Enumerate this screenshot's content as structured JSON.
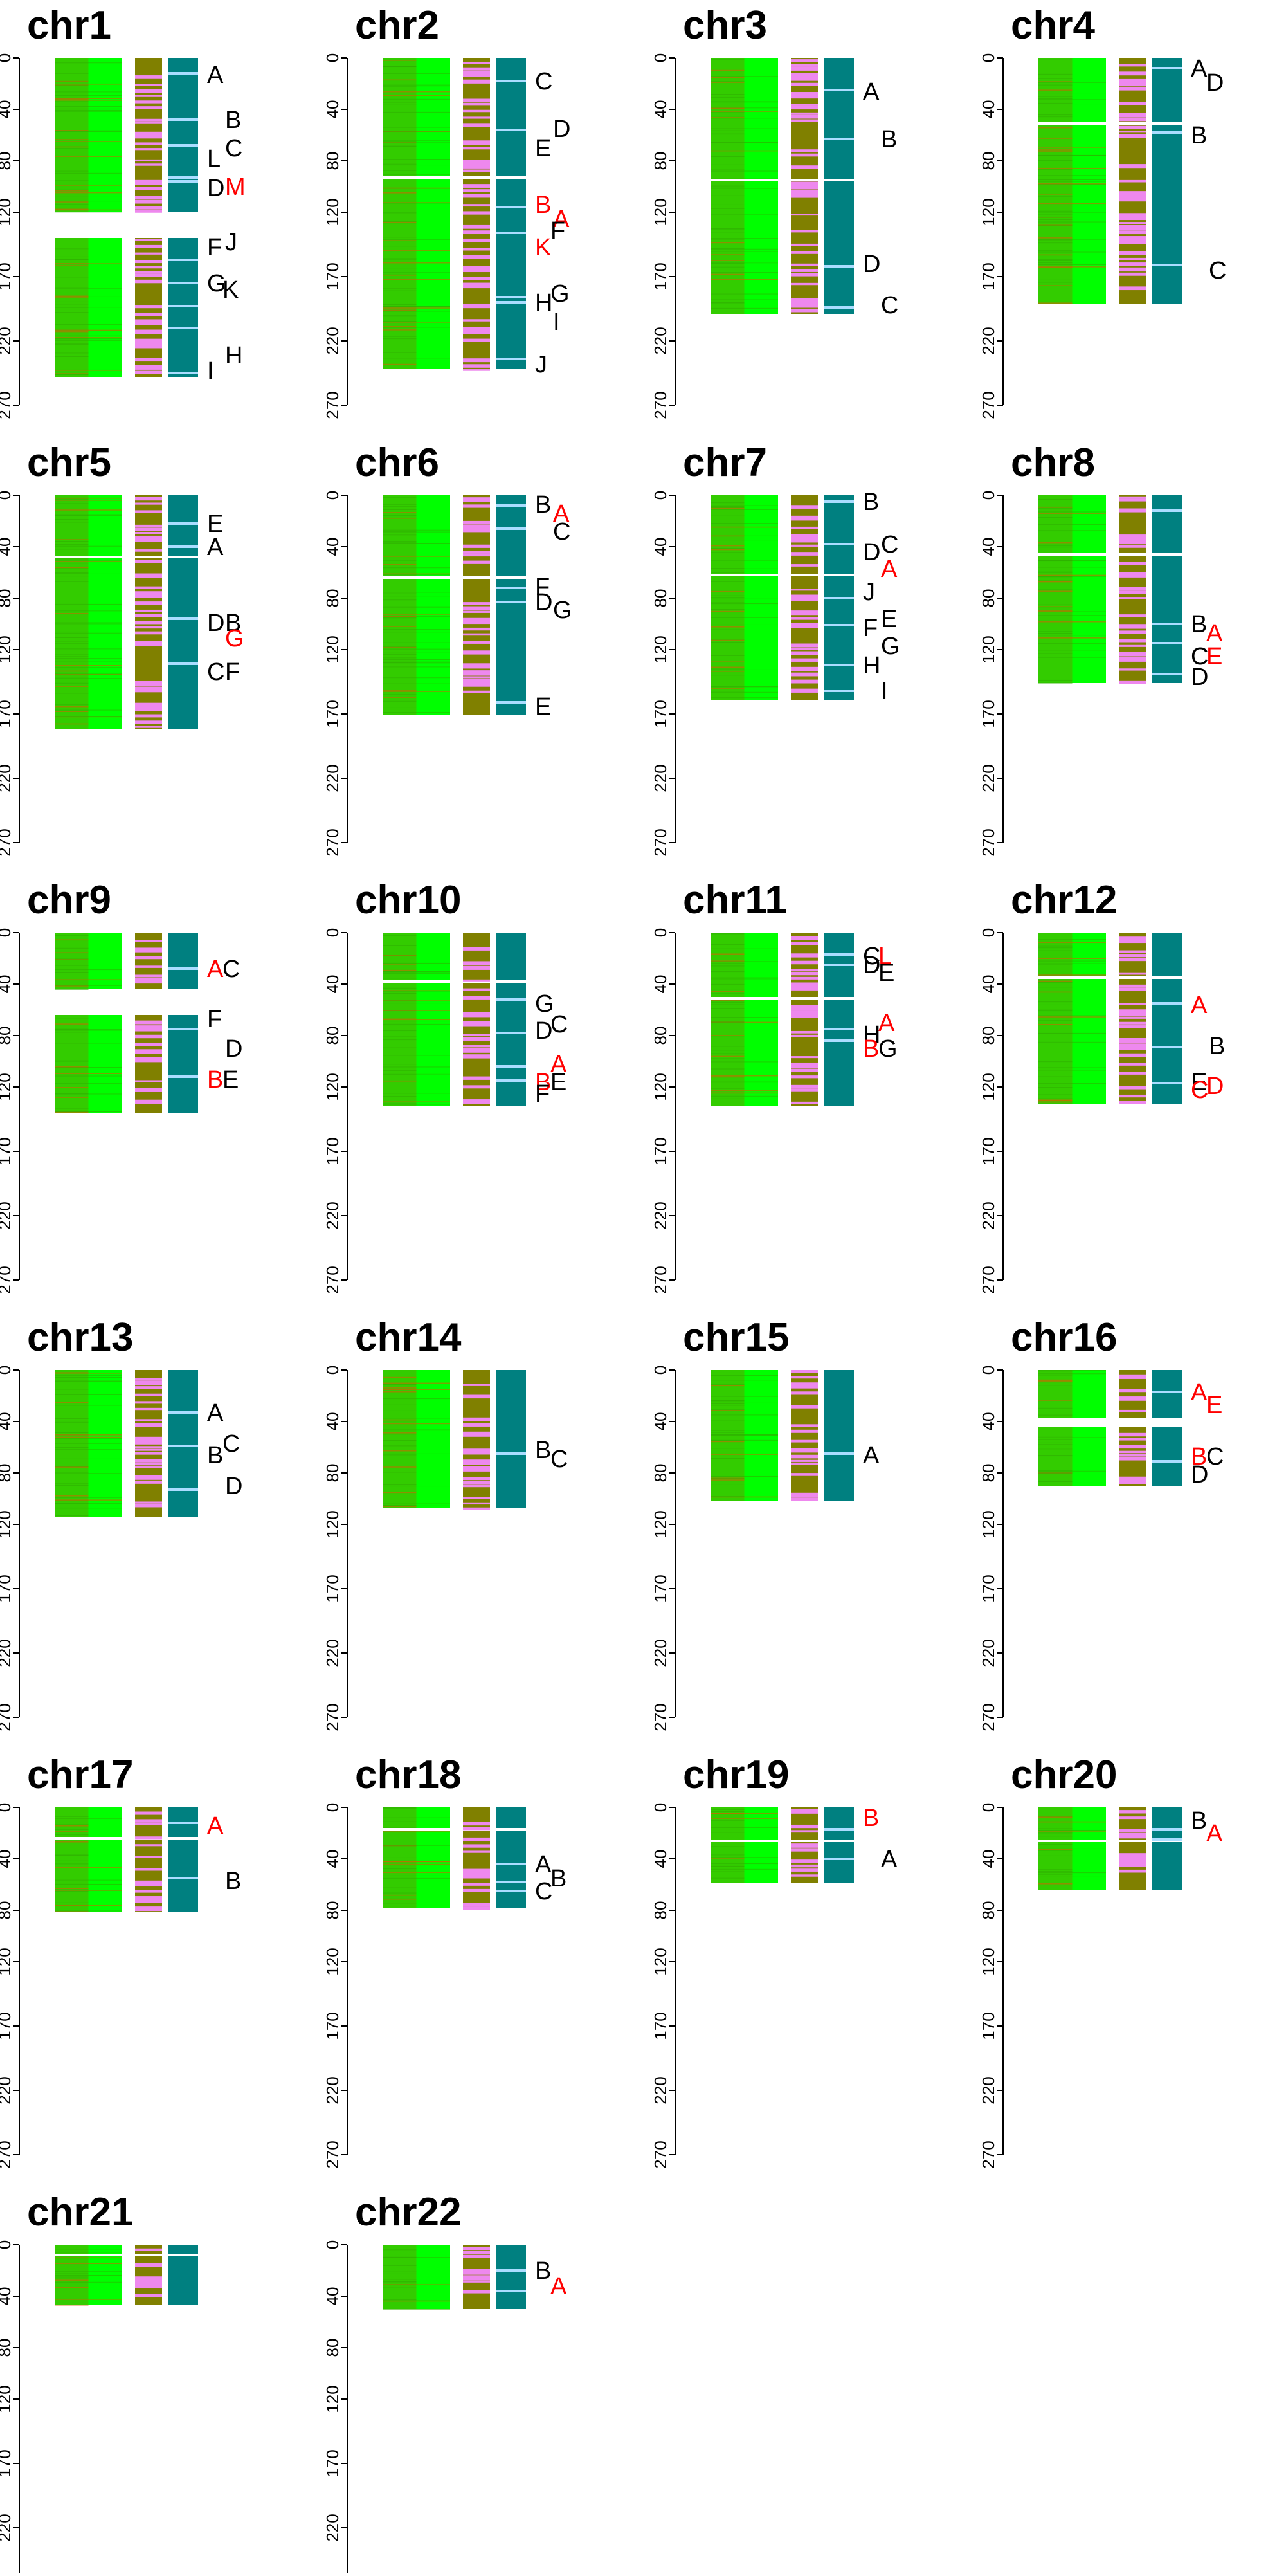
{
  "chart_data": {
    "type": "heatmap",
    "y_axis": {
      "ticks": [
        0,
        40,
        80,
        120,
        170,
        220,
        270
      ],
      "ylim": [
        0,
        270
      ],
      "reversed": true
    },
    "grid": false,
    "colors": {
      "track1_base": "#00ff00",
      "track1_shade": "#33cc00",
      "track1_stripe": "#cc6600",
      "track2_base": "#808000",
      "track2_stripe": "#ee88ee",
      "track3_base": "#008080",
      "track3_stripe": "#aaddff",
      "label_black": "#000000",
      "label_red": "#ff0000"
    },
    "panels": [
      {
        "title": "chr1",
        "start": 0,
        "end": 248,
        "gaps": [
          120,
          140
        ],
        "marks": [
          12,
          48,
          68,
          93,
          96,
          157,
          175,
          193,
          210,
          245
        ],
        "labels": [
          {
            "text": "A",
            "y": 13,
            "dx": 0,
            "color": "black"
          },
          {
            "text": "B",
            "y": 48,
            "dx": 28,
            "color": "black"
          },
          {
            "text": "C",
            "y": 70,
            "dx": 28,
            "color": "black"
          },
          {
            "text": "L",
            "y": 78,
            "dx": 0,
            "color": "black"
          },
          {
            "text": "D",
            "y": 101,
            "dx": 0,
            "color": "black"
          },
          {
            "text": "M",
            "y": 100,
            "dx": 28,
            "color": "red"
          },
          {
            "text": "J",
            "y": 143,
            "dx": 28,
            "color": "black"
          },
          {
            "text": "F",
            "y": 147,
            "dx": 0,
            "color": "black"
          },
          {
            "text": "G",
            "y": 175,
            "dx": 0,
            "color": "black"
          },
          {
            "text": "K",
            "y": 180,
            "dx": 24,
            "color": "black"
          },
          {
            "text": "H",
            "y": 231,
            "dx": 28,
            "color": "black"
          },
          {
            "text": "I",
            "y": 243,
            "dx": 0,
            "color": "black"
          }
        ]
      },
      {
        "title": "chr2",
        "start": 0,
        "end": 242,
        "gaps": [
          93
        ],
        "marks": [
          18,
          56,
          116,
          136,
          186,
          190,
          234
        ],
        "labels": [
          {
            "text": "C",
            "y": 18,
            "dx": 0,
            "color": "black"
          },
          {
            "text": "D",
            "y": 55,
            "dx": 28,
            "color": "black"
          },
          {
            "text": "E",
            "y": 70,
            "dx": 0,
            "color": "black"
          },
          {
            "text": "B",
            "y": 114,
            "dx": 0,
            "color": "red"
          },
          {
            "text": "A",
            "y": 125,
            "dx": 28,
            "color": "red"
          },
          {
            "text": "F",
            "y": 134,
            "dx": 24,
            "color": "black"
          },
          {
            "text": "K",
            "y": 147,
            "dx": 0,
            "color": "red"
          },
          {
            "text": "G",
            "y": 183,
            "dx": 24,
            "color": "black"
          },
          {
            "text": "H",
            "y": 190,
            "dx": 0,
            "color": "black"
          },
          {
            "text": "I",
            "y": 205,
            "dx": 28,
            "color": "black"
          },
          {
            "text": "J",
            "y": 238,
            "dx": 0,
            "color": "black"
          }
        ]
      },
      {
        "title": "chr3",
        "start": 0,
        "end": 199,
        "gaps": [
          95
        ],
        "marks": [
          25,
          63,
          162,
          194
        ],
        "labels": [
          {
            "text": "A",
            "y": 26,
            "dx": 0,
            "color": "black"
          },
          {
            "text": "B",
            "y": 63,
            "dx": 28,
            "color": "black"
          },
          {
            "text": "D",
            "y": 160,
            "dx": 0,
            "color": "black"
          },
          {
            "text": "C",
            "y": 192,
            "dx": 28,
            "color": "black"
          }
        ]
      },
      {
        "title": "chr4",
        "start": 0,
        "end": 191,
        "gaps": [
          51
        ],
        "marks": [
          8,
          58,
          161
        ],
        "labels": [
          {
            "text": "A",
            "y": 8,
            "dx": 0,
            "color": "black"
          },
          {
            "text": "D",
            "y": 19,
            "dx": 24,
            "color": "black"
          },
          {
            "text": "B",
            "y": 60,
            "dx": 0,
            "color": "black"
          },
          {
            "text": "C",
            "y": 165,
            "dx": 28,
            "color": "black"
          }
        ]
      },
      {
        "title": "chr5",
        "start": 0,
        "end": 182,
        "gaps": [
          48
        ],
        "marks": [
          22,
          40,
          96,
          131
        ],
        "labels": [
          {
            "text": "E",
            "y": 22,
            "dx": 0,
            "color": "black"
          },
          {
            "text": "A",
            "y": 40,
            "dx": 0,
            "color": "black"
          },
          {
            "text": "D",
            "y": 99,
            "dx": 0,
            "color": "black"
          },
          {
            "text": "B",
            "y": 99,
            "dx": 28,
            "color": "black"
          },
          {
            "text": "G",
            "y": 111,
            "dx": 28,
            "color": "red"
          },
          {
            "text": "C",
            "y": 137,
            "dx": 0,
            "color": "black"
          },
          {
            "text": "F",
            "y": 137,
            "dx": 28,
            "color": "black"
          }
        ]
      },
      {
        "title": "chr6",
        "start": 0,
        "end": 171,
        "gaps": [
          64
        ],
        "marks": [
          8,
          26,
          72,
          83,
          161
        ],
        "labels": [
          {
            "text": "B",
            "y": 7,
            "dx": 0,
            "color": "black"
          },
          {
            "text": "A",
            "y": 14,
            "dx": 28,
            "color": "red"
          },
          {
            "text": "C",
            "y": 28,
            "dx": 28,
            "color": "black"
          },
          {
            "text": "F",
            "y": 71,
            "dx": 0,
            "color": "black"
          },
          {
            "text": "D",
            "y": 83,
            "dx": 0,
            "color": "black"
          },
          {
            "text": "G",
            "y": 89,
            "dx": 28,
            "color": "black"
          },
          {
            "text": "E",
            "y": 164,
            "dx": 0,
            "color": "black"
          }
        ]
      },
      {
        "title": "chr7",
        "start": 0,
        "end": 159,
        "gaps": [
          62
        ],
        "marks": [
          5,
          38,
          80,
          101,
          132,
          152
        ],
        "labels": [
          {
            "text": "B",
            "y": 5,
            "dx": 0,
            "color": "black"
          },
          {
            "text": "C",
            "y": 38,
            "dx": 28,
            "color": "black"
          },
          {
            "text": "D",
            "y": 44,
            "dx": 0,
            "color": "black"
          },
          {
            "text": "A",
            "y": 57,
            "dx": 28,
            "color": "red"
          },
          {
            "text": "J",
            "y": 75,
            "dx": 0,
            "color": "black"
          },
          {
            "text": "E",
            "y": 96,
            "dx": 28,
            "color": "black"
          },
          {
            "text": "F",
            "y": 103,
            "dx": 0,
            "color": "black"
          },
          {
            "text": "G",
            "y": 117,
            "dx": 28,
            "color": "black"
          },
          {
            "text": "H",
            "y": 132,
            "dx": 0,
            "color": "black"
          },
          {
            "text": "I",
            "y": 152,
            "dx": 28,
            "color": "black"
          }
        ]
      },
      {
        "title": "chr8",
        "start": 0,
        "end": 146,
        "gaps": [
          46
        ],
        "marks": [
          12,
          100,
          115,
          139
        ],
        "labels": [
          {
            "text": "B",
            "y": 100,
            "dx": 0,
            "color": "black"
          },
          {
            "text": "A",
            "y": 107,
            "dx": 24,
            "color": "red"
          },
          {
            "text": "C",
            "y": 125,
            "dx": 0,
            "color": "black"
          },
          {
            "text": "E",
            "y": 125,
            "dx": 24,
            "color": "red"
          },
          {
            "text": "D",
            "y": 141,
            "dx": 0,
            "color": "black"
          }
        ]
      },
      {
        "title": "chr9",
        "start": 0,
        "end": 140,
        "gaps": [
          44,
          64
        ],
        "marks": [
          28,
          75,
          112
        ],
        "labels": [
          {
            "text": "A",
            "y": 28,
            "dx": 0,
            "color": "red"
          },
          {
            "text": "C",
            "y": 28,
            "dx": 24,
            "color": "black"
          },
          {
            "text": "F",
            "y": 67,
            "dx": 0,
            "color": "black"
          },
          {
            "text": "D",
            "y": 90,
            "dx": 28,
            "color": "black"
          },
          {
            "text": "B",
            "y": 114,
            "dx": 0,
            "color": "red"
          },
          {
            "text": "E",
            "y": 114,
            "dx": 24,
            "color": "black"
          }
        ]
      },
      {
        "title": "chr10",
        "start": 0,
        "end": 135,
        "gaps": [
          38
        ],
        "marks": [
          52,
          78,
          104,
          115
        ],
        "labels": [
          {
            "text": "G",
            "y": 55,
            "dx": 0,
            "color": "black"
          },
          {
            "text": "C",
            "y": 71,
            "dx": 24,
            "color": "black"
          },
          {
            "text": "D",
            "y": 76,
            "dx": 0,
            "color": "black"
          },
          {
            "text": "A",
            "y": 102,
            "dx": 24,
            "color": "red"
          },
          {
            "text": "B",
            "y": 116,
            "dx": 0,
            "color": "red"
          },
          {
            "text": "E",
            "y": 116,
            "dx": 24,
            "color": "black"
          },
          {
            "text": "F",
            "y": 125,
            "dx": 0,
            "color": "black"
          }
        ]
      },
      {
        "title": "chr11",
        "start": 0,
        "end": 135,
        "gaps": [
          51
        ],
        "marks": [
          17,
          25,
          75,
          84
        ],
        "labels": [
          {
            "text": "C",
            "y": 18,
            "dx": 0,
            "color": "black"
          },
          {
            "text": "L",
            "y": 18,
            "dx": 24,
            "color": "red"
          },
          {
            "text": "D",
            "y": 25,
            "dx": 0,
            "color": "black"
          },
          {
            "text": "E",
            "y": 31,
            "dx": 24,
            "color": "black"
          },
          {
            "text": "A",
            "y": 70,
            "dx": 24,
            "color": "red"
          },
          {
            "text": "H",
            "y": 79,
            "dx": 0,
            "color": "black"
          },
          {
            "text": "B",
            "y": 90,
            "dx": 0,
            "color": "red"
          },
          {
            "text": "G",
            "y": 90,
            "dx": 24,
            "color": "black"
          }
        ]
      },
      {
        "title": "chr12",
        "start": 0,
        "end": 133,
        "gaps": [
          35
        ],
        "marks": [
          55,
          89,
          117
        ],
        "labels": [
          {
            "text": "A",
            "y": 56,
            "dx": 0,
            "color": "red"
          },
          {
            "text": "B",
            "y": 88,
            "dx": 28,
            "color": "black"
          },
          {
            "text": "E",
            "y": 116,
            "dx": 0,
            "color": "black"
          },
          {
            "text": "D",
            "y": 119,
            "dx": 24,
            "color": "red"
          },
          {
            "text": "C",
            "y": 122,
            "dx": 0,
            "color": "red"
          }
        ]
      },
      {
        "title": "chr13",
        "start": 0,
        "end": 114,
        "gaps": [],
        "marks": [
          33,
          59,
          93
        ],
        "labels": [
          {
            "text": "A",
            "y": 33,
            "dx": 0,
            "color": "black"
          },
          {
            "text": "C",
            "y": 57,
            "dx": 24,
            "color": "black"
          },
          {
            "text": "B",
            "y": 66,
            "dx": 0,
            "color": "black"
          },
          {
            "text": "D",
            "y": 90,
            "dx": 28,
            "color": "black"
          }
        ]
      },
      {
        "title": "chr14",
        "start": 0,
        "end": 107,
        "gaps": [],
        "marks": [
          65
        ],
        "labels": [
          {
            "text": "B",
            "y": 62,
            "dx": 0,
            "color": "black"
          },
          {
            "text": "C",
            "y": 69,
            "dx": 24,
            "color": "black"
          }
        ]
      },
      {
        "title": "chr15",
        "start": 0,
        "end": 102,
        "gaps": [],
        "marks": [
          65
        ],
        "labels": [
          {
            "text": "A",
            "y": 66,
            "dx": 0,
            "color": "black"
          }
        ]
      },
      {
        "title": "chr16",
        "start": 0,
        "end": 90,
        "gaps": [
          37,
          44
        ],
        "marks": [
          17,
          71
        ],
        "labels": [
          {
            "text": "A",
            "y": 17,
            "dx": 0,
            "color": "red"
          },
          {
            "text": "E",
            "y": 27,
            "dx": 24,
            "color": "red"
          },
          {
            "text": "B",
            "y": 67,
            "dx": 0,
            "color": "red"
          },
          {
            "text": "C",
            "y": 67,
            "dx": 24,
            "color": "black"
          },
          {
            "text": "D",
            "y": 81,
            "dx": 0,
            "color": "black"
          }
        ]
      },
      {
        "title": "chr17",
        "start": 0,
        "end": 81,
        "gaps": [
          24
        ],
        "marks": [
          12,
          55
        ],
        "labels": [
          {
            "text": "A",
            "y": 14,
            "dx": 0,
            "color": "red"
          },
          {
            "text": "B",
            "y": 57,
            "dx": 28,
            "color": "black"
          }
        ]
      },
      {
        "title": "chr18",
        "start": 0,
        "end": 78,
        "gaps": [
          17
        ],
        "marks": [
          44,
          58,
          65
        ],
        "labels": [
          {
            "text": "A",
            "y": 44,
            "dx": 0,
            "color": "black"
          },
          {
            "text": "B",
            "y": 55,
            "dx": 24,
            "color": "black"
          },
          {
            "text": "C",
            "y": 65,
            "dx": 0,
            "color": "black"
          }
        ]
      },
      {
        "title": "chr19",
        "start": 0,
        "end": 59,
        "gaps": [
          26
        ],
        "marks": [
          17,
          40
        ],
        "labels": [
          {
            "text": "B",
            "y": 8,
            "dx": 0,
            "color": "red"
          },
          {
            "text": "A",
            "y": 40,
            "dx": 28,
            "color": "black"
          }
        ]
      },
      {
        "title": "chr20",
        "start": 0,
        "end": 64,
        "gaps": [
          26
        ],
        "marks": [
          17,
          25
        ],
        "labels": [
          {
            "text": "B",
            "y": 10,
            "dx": 0,
            "color": "black"
          },
          {
            "text": "A",
            "y": 20,
            "dx": 24,
            "color": "red"
          }
        ]
      },
      {
        "title": "chr21",
        "start": 0,
        "end": 47,
        "gaps": [
          8
        ],
        "marks": [],
        "labels": []
      },
      {
        "title": "chr22",
        "start": 0,
        "end": 50,
        "gaps": [],
        "marks": [
          20,
          36
        ],
        "labels": [
          {
            "text": "B",
            "y": 20,
            "dx": 0,
            "color": "black"
          },
          {
            "text": "A",
            "y": 32,
            "dx": 24,
            "color": "red"
          }
        ]
      }
    ]
  }
}
